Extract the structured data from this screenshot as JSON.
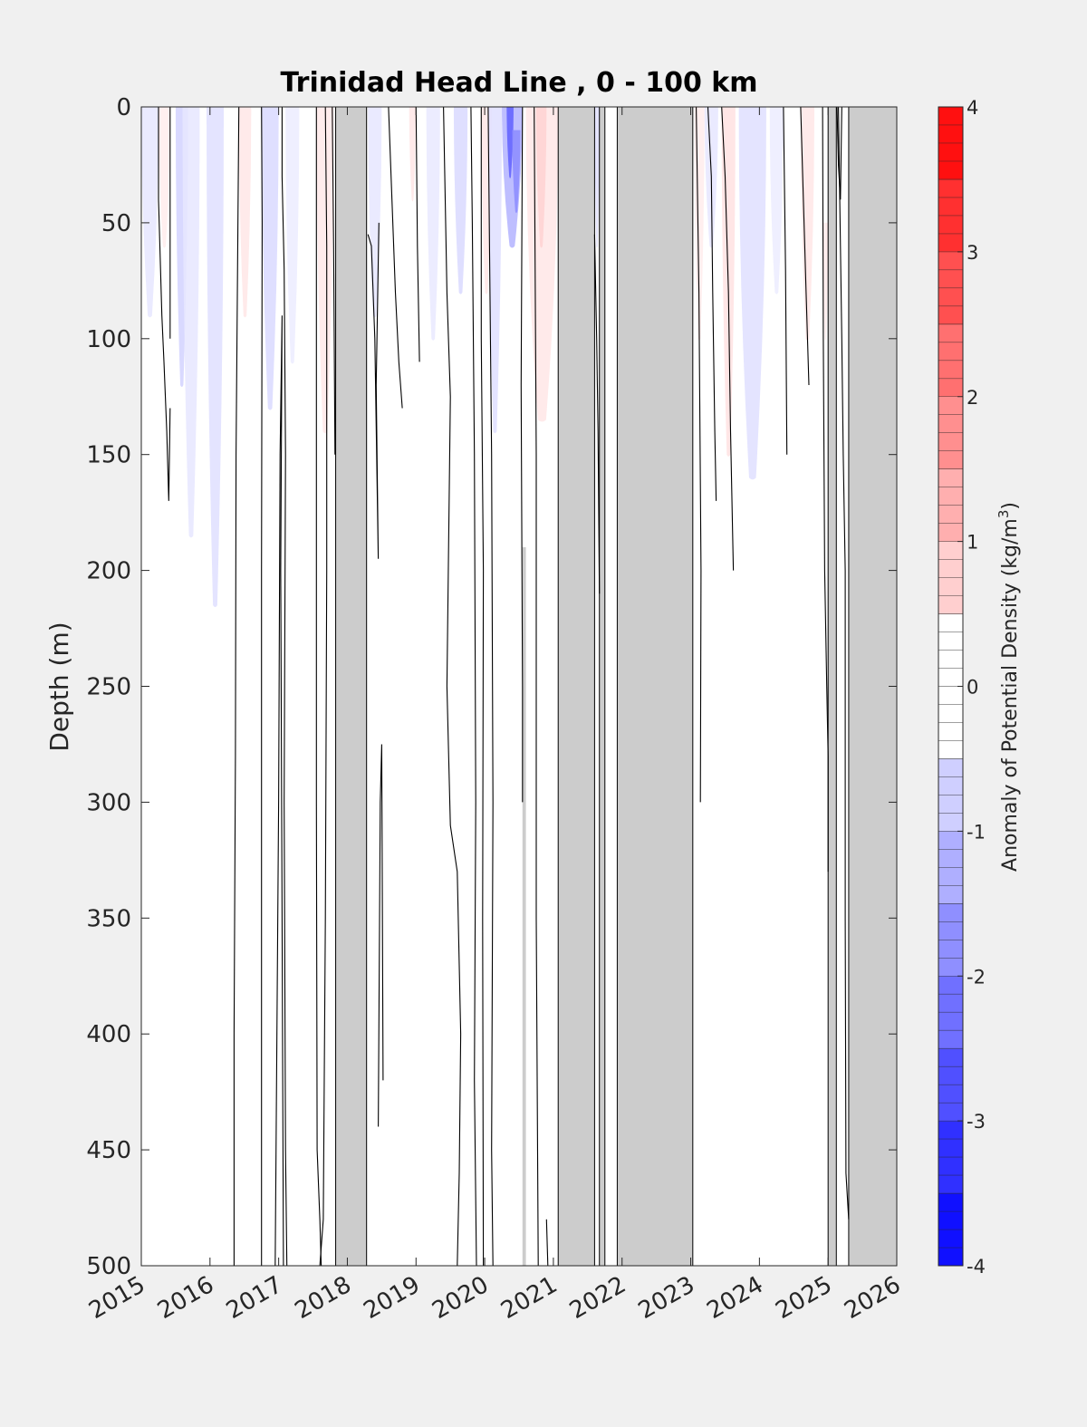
{
  "chart_data": {
    "type": "heatmap",
    "title": "Trinidad Head Line , 0 - 100 km",
    "ylabel": "Depth (m)",
    "xlabel": "",
    "colorbar_label": "Anomaly of Potential Density (kg/m³)",
    "colorbar_label_main": "Anomaly of Potential Density (kg/m",
    "colorbar_label_sup": "3",
    "colorbar_label_end": ")",
    "xlim": [
      2015,
      2026
    ],
    "ylim": [
      0,
      500
    ],
    "y_reversed": true,
    "clim": [
      -4,
      4
    ],
    "x_ticks": [
      "2015",
      "2016",
      "2017",
      "2018",
      "2019",
      "2020",
      "2021",
      "2022",
      "2023",
      "2024",
      "2025",
      "2026"
    ],
    "y_ticks": [
      "0",
      "50",
      "100",
      "150",
      "200",
      "250",
      "300",
      "350",
      "400",
      "450",
      "500"
    ],
    "colorbar_ticks": [
      "-4",
      "-3",
      "-2",
      "-1",
      "0",
      "1",
      "2",
      "3",
      "4"
    ],
    "colorbar_levels": [
      -4,
      -3.5,
      -3,
      -2.5,
      -2,
      -1.5,
      -1,
      -0.5,
      0,
      0.5,
      1,
      1.5,
      2,
      2.5,
      3,
      3.5,
      4
    ],
    "colors": {
      "negative": "#0000ff",
      "positive": "#ff0000",
      "zero": "#ffffff",
      "no_data": "#cccccc",
      "contour": "#000000",
      "background": "#f0f0f0"
    },
    "no_data_periods": [
      [
        2017.83,
        2018.28
      ],
      [
        2021.07,
        2021.6
      ],
      [
        2021.67,
        2021.75
      ],
      [
        2021.93,
        2023.03
      ],
      [
        2025.0,
        2025.12
      ],
      [
        2025.3,
        2026.0
      ]
    ],
    "no_data_thin_periods": [
      [
        2020.55,
        2020.6
      ]
    ],
    "anomaly_patches": [
      {
        "x": [
          2015.0,
          2015.25
        ],
        "depth": [
          0,
          90
        ],
        "value": -0.4
      },
      {
        "x": [
          2015.25,
          2015.42
        ],
        "depth": [
          0,
          60
        ],
        "value": 0.3
      },
      {
        "x": [
          2015.5,
          2015.68
        ],
        "depth": [
          0,
          120
        ],
        "value": -0.7
      },
      {
        "x": [
          2015.6,
          2015.85
        ],
        "depth": [
          0,
          185
        ],
        "value": -0.4
      },
      {
        "x": [
          2015.95,
          2016.2
        ],
        "depth": [
          0,
          215
        ],
        "value": -0.5
      },
      {
        "x": [
          2016.42,
          2016.6
        ],
        "depth": [
          0,
          90
        ],
        "value": 0.4
      },
      {
        "x": [
          2016.75,
          2017.0
        ],
        "depth": [
          0,
          130
        ],
        "value": -0.6
      },
      {
        "x": [
          2017.1,
          2017.3
        ],
        "depth": [
          0,
          110
        ],
        "value": -0.3
      },
      {
        "x": [
          2017.55,
          2017.8
        ],
        "depth": [
          0,
          140
        ],
        "value": 0.35
      },
      {
        "x": [
          2018.3,
          2018.5
        ],
        "depth": [
          0,
          90
        ],
        "value": -0.4
      },
      {
        "x": [
          2018.9,
          2019.0
        ],
        "depth": [
          0,
          40
        ],
        "value": 0.4
      },
      {
        "x": [
          2019.15,
          2019.35
        ],
        "depth": [
          0,
          100
        ],
        "value": -0.35
      },
      {
        "x": [
          2019.55,
          2019.75
        ],
        "depth": [
          0,
          80
        ],
        "value": -0.6
      },
      {
        "x": [
          2019.95,
          2020.1
        ],
        "depth": [
          0,
          80
        ],
        "value": 0.4
      },
      {
        "x": [
          2020.05,
          2020.25
        ],
        "depth": [
          0,
          140
        ],
        "value": -0.5
      },
      {
        "x": [
          2020.25,
          2020.55
        ],
        "depth": [
          0,
          60
        ],
        "value": -1.2
      },
      {
        "x": [
          2020.32,
          2020.42
        ],
        "depth": [
          0,
          30
        ],
        "value": -2.5
      },
      {
        "x": [
          2020.4,
          2020.52
        ],
        "depth": [
          10,
          45
        ],
        "value": -1.8
      },
      {
        "x": [
          2020.6,
          2021.07
        ],
        "depth": [
          0,
          135
        ],
        "value": 0.4
      },
      {
        "x": [
          2020.75,
          2020.9
        ],
        "depth": [
          0,
          60
        ],
        "value": 0.7
      },
      {
        "x": [
          2021.6,
          2021.67
        ],
        "depth": [
          0,
          60
        ],
        "value": -0.5
      },
      {
        "x": [
          2023.05,
          2023.2
        ],
        "depth": [
          0,
          100
        ],
        "value": 0.3
      },
      {
        "x": [
          2023.2,
          2023.4
        ],
        "depth": [
          0,
          60
        ],
        "value": -0.4
      },
      {
        "x": [
          2023.45,
          2023.65
        ],
        "depth": [
          0,
          150
        ],
        "value": 0.45
      },
      {
        "x": [
          2023.7,
          2024.1
        ],
        "depth": [
          0,
          160
        ],
        "value": -0.5
      },
      {
        "x": [
          2024.15,
          2024.35
        ],
        "depth": [
          0,
          80
        ],
        "value": -0.3
      },
      {
        "x": [
          2024.6,
          2024.8
        ],
        "depth": [
          0,
          100
        ],
        "value": 0.4
      },
      {
        "x": [
          2024.92,
          2025.0
        ],
        "depth": [
          50,
          100
        ],
        "value": 0.3
      }
    ],
    "zero_contours": [
      {
        "x": [
          2015.25,
          2015.25,
          2015.3,
          2015.33,
          2015.37,
          2015.4,
          2015.42
        ],
        "depth": [
          0,
          40,
          90,
          110,
          140,
          170,
          130
        ]
      },
      {
        "x": [
          2015.42,
          2015.42
        ],
        "depth": [
          0,
          100
        ]
      },
      {
        "x": [
          2016.42,
          2016.38,
          2016.37,
          2016.35,
          2016.35
        ],
        "depth": [
          0,
          150,
          280,
          400,
          500
        ]
      },
      {
        "x": [
          2016.75,
          2016.76,
          2016.75,
          2016.75,
          2016.75
        ],
        "depth": [
          0,
          50,
          200,
          350,
          500
        ]
      },
      {
        "x": [
          2016.95,
          2017.0,
          2017.02,
          2017.05,
          2017.03,
          2017.05,
          2017.07
        ],
        "depth": [
          500,
          300,
          150,
          90,
          200,
          350,
          500
        ]
      },
      {
        "x": [
          2017.05,
          2017.05,
          2017.08,
          2017.1,
          2017.08,
          2017.1,
          2017.12
        ],
        "depth": [
          0,
          30,
          70,
          150,
          300,
          450,
          500
        ]
      },
      {
        "x": [
          2017.55,
          2017.55,
          2017.55,
          2017.56,
          2017.6,
          2017.62
        ],
        "depth": [
          0,
          100,
          300,
          450,
          480,
          500
        ]
      },
      {
        "x": [
          2017.6,
          2017.65,
          2017.68,
          2017.7,
          2017.7,
          2017.68
        ],
        "depth": [
          500,
          480,
          350,
          200,
          60,
          0
        ]
      },
      {
        "x": [
          2017.78,
          2017.8,
          2017.82
        ],
        "depth": [
          0,
          60,
          150
        ]
      },
      {
        "x": [
          2018.3,
          2018.35,
          2018.4,
          2018.45,
          2018.42,
          2018.46
        ],
        "depth": [
          55,
          60,
          100,
          195,
          120,
          50
        ]
      },
      {
        "x": [
          2018.45,
          2018.48,
          2018.5,
          2018.52
        ],
        "depth": [
          440,
          300,
          275,
          420
        ]
      },
      {
        "x": [
          2018.6,
          2018.65,
          2018.7,
          2018.75,
          2018.8
        ],
        "depth": [
          0,
          40,
          80,
          110,
          130
        ]
      },
      {
        "x": [
          2019.0,
          2019.02,
          2019.05
        ],
        "depth": [
          0,
          60,
          110
        ]
      },
      {
        "x": [
          2019.4,
          2019.45,
          2019.5,
          2019.45,
          2019.5,
          2019.6,
          2019.65,
          2019.63,
          2019.6
        ],
        "depth": [
          0,
          80,
          125,
          250,
          310,
          330,
          400,
          460,
          500
        ]
      },
      {
        "x": [
          2019.8,
          2019.82,
          2019.85,
          2019.87,
          2019.85,
          2019.88
        ],
        "depth": [
          0,
          50,
          150,
          300,
          420,
          500
        ]
      },
      {
        "x": [
          2019.95,
          2019.95,
          2019.98,
          2019.97,
          2019.98
        ],
        "depth": [
          0,
          100,
          200,
          350,
          500
        ]
      },
      {
        "x": [
          2020.05,
          2020.07,
          2020.1,
          2020.12,
          2020.1,
          2020.12
        ],
        "depth": [
          0,
          60,
          150,
          300,
          450,
          500
        ]
      },
      {
        "x": [
          2020.55,
          2020.53,
          2020.55,
          2020.55
        ],
        "depth": [
          0,
          120,
          250,
          300
        ]
      },
      {
        "x": [
          2020.72,
          2020.75,
          2020.75,
          2020.78
        ],
        "depth": [
          0,
          150,
          350,
          500
        ]
      },
      {
        "x": [
          2020.9,
          2020.92
        ],
        "depth": [
          480,
          500
        ]
      },
      {
        "x": [
          2021.6,
          2021.63,
          2021.65,
          2021.67
        ],
        "depth": [
          55,
          100,
          140,
          210
        ]
      },
      {
        "x": [
          2023.08,
          2023.12,
          2023.15,
          2023.14
        ],
        "depth": [
          0,
          80,
          200,
          300
        ]
      },
      {
        "x": [
          2023.25,
          2023.3,
          2023.32,
          2023.35,
          2023.37
        ],
        "depth": [
          0,
          30,
          80,
          140,
          170
        ]
      },
      {
        "x": [
          2023.45,
          2023.5,
          2023.55,
          2023.58,
          2023.62
        ],
        "depth": [
          0,
          30,
          80,
          140,
          200
        ]
      },
      {
        "x": [
          2024.35,
          2024.38,
          2024.4
        ],
        "depth": [
          0,
          70,
          150
        ]
      },
      {
        "x": [
          2024.6,
          2024.68,
          2024.72
        ],
        "depth": [
          0,
          80,
          120
        ]
      },
      {
        "x": [
          2024.92,
          2024.93,
          2024.95,
          2024.98,
          2025.0,
          2025.0
        ],
        "depth": [
          0,
          100,
          200,
          250,
          280,
          330
        ]
      },
      {
        "x": [
          2025.15,
          2025.18,
          2025.2,
          2025.22,
          2025.25,
          2025.25
        ],
        "depth": [
          0,
          60,
          100,
          150,
          200,
          250
        ]
      },
      {
        "x": [
          2025.25,
          2025.25,
          2025.26,
          2025.3
        ],
        "depth": [
          250,
          350,
          460,
          480
        ]
      },
      {
        "x": [
          2025.13,
          2025.15,
          2025.18,
          2025.2
        ],
        "depth": [
          0,
          25,
          40,
          0
        ]
      }
    ]
  }
}
